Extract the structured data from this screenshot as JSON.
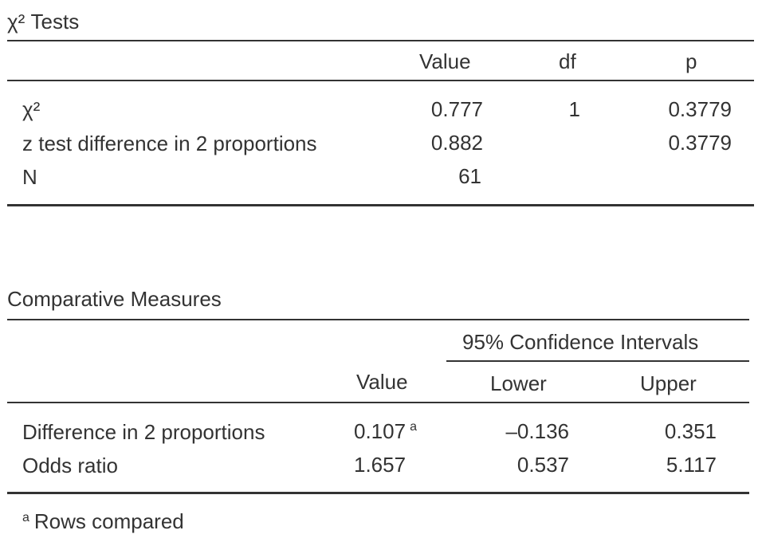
{
  "chi_table": {
    "title": "χ² Tests",
    "columns": [
      "Value",
      "df",
      "p"
    ],
    "rows": [
      {
        "label": "χ²",
        "value": "0.777",
        "df": "1",
        "p": "0.3779"
      },
      {
        "label": "z test difference in 2 proportions",
        "value": "0.882",
        "df": "",
        "p": "0.3779"
      },
      {
        "label": "N",
        "value": "61",
        "df": "",
        "p": ""
      }
    ]
  },
  "comparative_table": {
    "title": "Comparative Measures",
    "ci_header": "95% Confidence Intervals",
    "columns": [
      "Value",
      "Lower",
      "Upper"
    ],
    "rows": [
      {
        "label": "Difference in 2 proportions",
        "value": "0.107",
        "value_note": "a",
        "lower": "–0.136",
        "upper": "0.351"
      },
      {
        "label": "Odds ratio",
        "value": "1.657",
        "value_note": "",
        "lower": "0.537",
        "upper": "5.117"
      }
    ]
  },
  "footnote": {
    "marker": "a",
    "text": "Rows compared"
  }
}
